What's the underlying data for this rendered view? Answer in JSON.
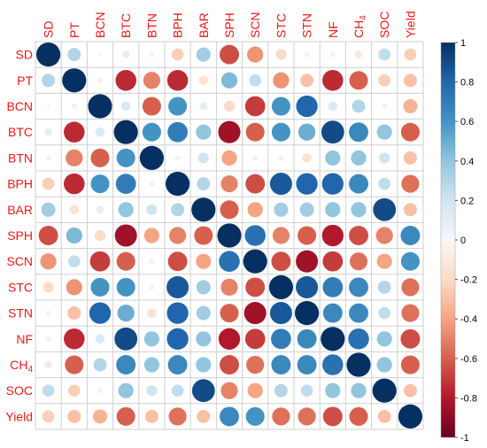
{
  "chart_data": {
    "type": "heatmap",
    "style": "correlogram-circles",
    "variables": [
      "SD",
      "PT",
      "BCN",
      "BTC",
      "BTN",
      "BPH",
      "BAR",
      "SPH",
      "SCN",
      "STC",
      "STN",
      "NF",
      "CH4",
      "SOC",
      "Yield"
    ],
    "variable_labels": {
      "SD": "SD",
      "PT": "PT",
      "BCN": "BCN",
      "BTC": "BTC",
      "BTN": "BTN",
      "BPH": "BPH",
      "BAR": "BAR",
      "SPH": "SPH",
      "SCN": "SCN",
      "STC": "STC",
      "STN": "STN",
      "NF": "NF",
      "CH4_base": "CH",
      "CH4_sub": "4",
      "SOC": "SOC",
      "Yield": "Yield"
    },
    "matrix": [
      [
        1.0,
        0.3,
        0.02,
        0.1,
        0.05,
        -0.25,
        0.35,
        -0.65,
        -0.45,
        -0.2,
        0.05,
        0.05,
        -0.1,
        0.25,
        -0.25
      ],
      [
        0.3,
        1.0,
        -0.05,
        -0.75,
        -0.5,
        -0.75,
        -0.15,
        0.45,
        0.25,
        -0.45,
        -0.3,
        -0.75,
        -0.6,
        -0.25,
        -0.3
      ],
      [
        0.02,
        -0.05,
        1.0,
        0.15,
        -0.6,
        0.6,
        0.1,
        -0.2,
        -0.7,
        0.6,
        0.8,
        0.15,
        0.3,
        0.05,
        -0.35
      ],
      [
        0.1,
        -0.75,
        0.15,
        1.0,
        0.6,
        0.7,
        0.4,
        -0.85,
        -0.6,
        0.6,
        0.5,
        0.9,
        0.65,
        0.4,
        -0.6
      ],
      [
        0.05,
        -0.5,
        -0.6,
        0.6,
        1.0,
        0.05,
        0.2,
        -0.4,
        0.05,
        0.05,
        -0.15,
        0.4,
        0.4,
        0.2,
        -0.3
      ],
      [
        -0.25,
        -0.75,
        0.6,
        0.7,
        0.05,
        1.0,
        0.3,
        -0.5,
        -0.65,
        0.85,
        0.8,
        0.8,
        0.65,
        0.25,
        -0.55
      ],
      [
        0.35,
        -0.15,
        0.1,
        0.4,
        0.2,
        0.3,
        1.0,
        -0.6,
        -0.4,
        0.35,
        0.35,
        0.4,
        0.4,
        0.9,
        -0.3
      ],
      [
        -0.65,
        0.45,
        -0.2,
        -0.85,
        -0.4,
        -0.5,
        -0.6,
        1.0,
        0.75,
        -0.5,
        -0.6,
        -0.8,
        -0.65,
        -0.5,
        0.65
      ],
      [
        -0.45,
        0.25,
        -0.7,
        -0.6,
        0.05,
        -0.65,
        -0.4,
        0.75,
        1.0,
        -0.65,
        -0.85,
        -0.7,
        -0.55,
        -0.4,
        0.6
      ],
      [
        -0.2,
        -0.45,
        0.6,
        0.6,
        0.05,
        0.85,
        0.35,
        -0.5,
        -0.65,
        1.0,
        0.85,
        0.7,
        0.65,
        0.3,
        -0.55
      ],
      [
        0.05,
        -0.3,
        0.8,
        0.5,
        -0.15,
        0.8,
        0.35,
        -0.6,
        -0.85,
        0.85,
        1.0,
        0.65,
        0.65,
        0.25,
        -0.55
      ],
      [
        0.05,
        -0.75,
        0.15,
        0.9,
        0.4,
        0.8,
        0.4,
        -0.8,
        -0.7,
        0.7,
        0.65,
        1.0,
        0.75,
        0.4,
        -0.65
      ],
      [
        -0.1,
        -0.6,
        0.3,
        0.65,
        0.4,
        0.65,
        0.4,
        -0.65,
        -0.55,
        0.65,
        0.65,
        0.75,
        1.0,
        0.4,
        -0.6
      ],
      [
        0.25,
        -0.25,
        0.05,
        0.4,
        0.2,
        0.25,
        0.9,
        -0.5,
        -0.4,
        0.3,
        0.25,
        0.4,
        0.4,
        1.0,
        -0.3
      ],
      [
        -0.25,
        -0.3,
        -0.35,
        -0.6,
        -0.3,
        -0.55,
        -0.3,
        0.65,
        0.6,
        -0.55,
        -0.55,
        -0.65,
        -0.6,
        -0.3,
        1.0
      ]
    ],
    "colorbar": {
      "range": [
        -1,
        1
      ],
      "ticks": [
        "1",
        "0.8",
        "0.6",
        "0.4",
        "0.2",
        "0",
        "-0.2",
        "-0.4",
        "-0.6",
        "-0.8",
        "-1"
      ],
      "colors_high_to_low": [
        "#053061",
        "#2166ac",
        "#4393c3",
        "#92c5de",
        "#d1e5f0",
        "#f7f7f7",
        "#fddbc7",
        "#f4a582",
        "#d6604d",
        "#b2182b",
        "#67001f"
      ]
    },
    "label_color": "#e8191c",
    "grid_color": "#cfcfcf"
  }
}
